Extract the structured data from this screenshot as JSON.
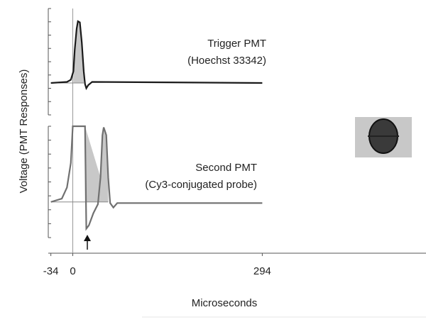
{
  "chart_data": {
    "type": "line",
    "xlabel": "Microseconds",
    "ylabel": "Voltage (PMT Responses)",
    "xlim": [
      -38,
      548
    ],
    "xticks": [
      -34,
      0,
      294
    ],
    "series": [
      {
        "name": "Trigger PMT",
        "subtitle": "(Hoechst 33342)",
        "color": "#1a1a1a",
        "ylim": [
          0,
          100
        ],
        "x": [
          -34,
          -9,
          -3,
          1,
          3,
          6,
          8,
          11,
          14,
          17,
          19,
          21,
          24,
          30,
          294
        ],
        "values": [
          30,
          31,
          33,
          41,
          61,
          81,
          88,
          87,
          68,
          41,
          29,
          25,
          28,
          31,
          30
        ]
      },
      {
        "name": "Second PMT",
        "subtitle": "(Cy3-conjugated probe)",
        "color": "#707070",
        "ylim": [
          0,
          100
        ],
        "x": [
          -34,
          -17,
          -9,
          -3,
          0,
          19,
          21,
          25,
          32,
          39,
          43,
          46,
          48,
          52,
          55,
          58,
          63,
          69,
          294
        ],
        "values": [
          32,
          35,
          45,
          67,
          100,
          100,
          8,
          11,
          22,
          30,
          54,
          92,
          99,
          92,
          54,
          31,
          27,
          31,
          31
        ]
      }
    ]
  }
}
